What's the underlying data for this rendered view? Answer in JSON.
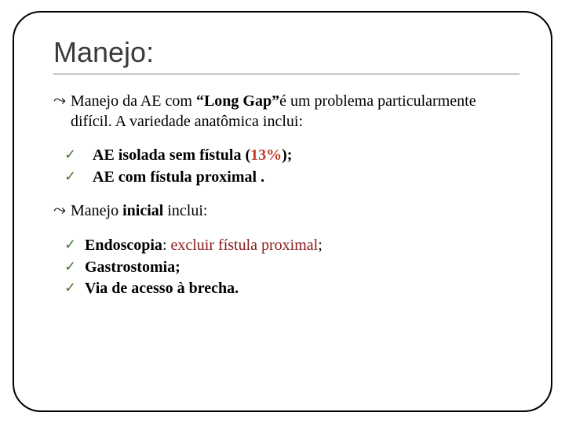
{
  "title": "Manejo:",
  "p1_pre": "Manejo da AE com ",
  "p1_bold": "“Long Gap”",
  "p1_post": "é um problema particularmente difícil. A variedade anatômica inclui:",
  "c1a_pre": "AE isolada sem fístula (",
  "c1a_red": "13%",
  "c1a_post": ");",
  "c1b": "AE com fístula proximal .",
  "p2_pre": "Manejo ",
  "p2_bold": "inicial",
  "p2_post": " inclui:",
  "c2a_bold": "Endoscopia",
  "c2a_sep": ": ",
  "c2a_brown": "excluir fístula proximal",
  "c2a_post": ";",
  "c2b": "Gastrostomia;",
  "c2c": "Via de acesso à brecha.",
  "bullet_glyph": "",
  "tick_glyph": "✓"
}
